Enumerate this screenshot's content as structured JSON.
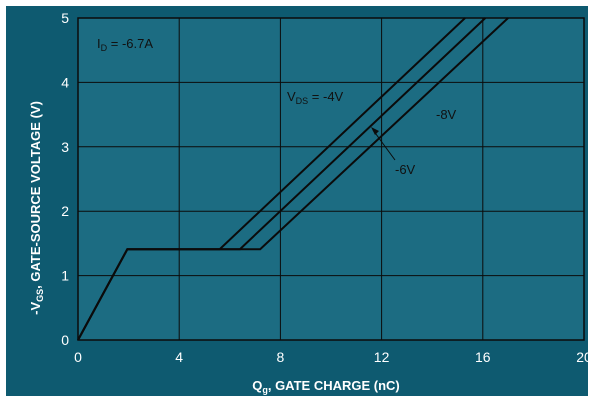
{
  "chart_data": {
    "type": "line",
    "xlim": [
      0,
      20
    ],
    "ylim": [
      0,
      5
    ],
    "x_ticks": [
      "0",
      "4",
      "8",
      "12",
      "16",
      "20"
    ],
    "x_tick_values": [
      0,
      4,
      8,
      12,
      16,
      20
    ],
    "y_ticks": [
      "0",
      "1",
      "2",
      "3",
      "4",
      "5"
    ],
    "y_tick_values": [
      0,
      1,
      2,
      3,
      4,
      5
    ],
    "grid": true,
    "xlabel": {
      "main": "Q",
      "sub": "g",
      "rest": ", GATE CHARGE (nC)"
    },
    "ylabel": {
      "main": "-V",
      "sub": "GS",
      "rest": ", GATE-SOURCE VOLTAGE (V)"
    },
    "condition": {
      "main": "I",
      "sub": "D",
      "rest": " = -6.7A"
    },
    "series": [
      {
        "name": "-4V",
        "x": [
          0,
          1.95,
          5.6,
          15.3
        ],
        "y": [
          0,
          1.41,
          1.41,
          5.0
        ]
      },
      {
        "name": "-6V",
        "x": [
          0,
          1.95,
          6.4,
          16.1
        ],
        "y": [
          0,
          1.41,
          1.41,
          5.0
        ]
      },
      {
        "name": "-8V",
        "x": [
          0,
          1.95,
          7.2,
          17.0
        ],
        "y": [
          0,
          1.41,
          1.41,
          5.0
        ]
      }
    ],
    "annotations": [
      {
        "main": "V",
        "sub": "DS",
        "rest": " = -4V"
      },
      {
        "main": "-6V",
        "sub": "",
        "rest": ""
      },
      {
        "main": "-8V",
        "sub": "",
        "rest": ""
      }
    ],
    "colors": {
      "background": "#0e5a70",
      "plot_area": "#1c6c82",
      "line": "#0b0b0b",
      "grid": "#0b0b0b",
      "text": "#ffffff"
    }
  }
}
